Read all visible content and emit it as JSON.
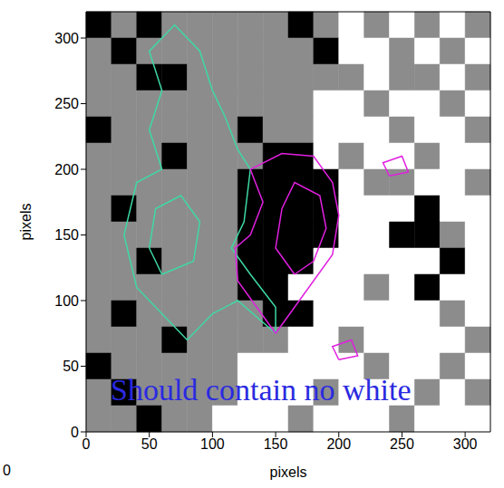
{
  "chart_data": {
    "type": "heatmap",
    "x_label": "pixels",
    "y_label": "pixels",
    "xlim": [
      0,
      320
    ],
    "ylim": [
      0,
      320
    ],
    "xticks": [
      0,
      50,
      100,
      150,
      200,
      250,
      300
    ],
    "yticks": [
      0,
      50,
      100,
      150,
      200,
      250,
      300
    ],
    "grid": false,
    "levels": [
      -1,
      0,
      1
    ],
    "colors": [
      "#000000",
      "#8c8c8c",
      "#ffffff"
    ],
    "cells": [
      [
        -1,
        0,
        -1,
        0,
        0,
        0,
        0,
        0,
        -1,
        0,
        1,
        0,
        1,
        0,
        1,
        0
      ],
      [
        0,
        -1,
        0,
        0,
        0,
        0,
        0,
        0,
        0,
        -1,
        1,
        1,
        0,
        1,
        0,
        1
      ],
      [
        0,
        0,
        -1,
        -1,
        0,
        0,
        0,
        0,
        0,
        0,
        0,
        1,
        0,
        0,
        1,
        0
      ],
      [
        0,
        0,
        0,
        0,
        0,
        0,
        0,
        0,
        0,
        1,
        1,
        0,
        1,
        1,
        0,
        1
      ],
      [
        -1,
        0,
        0,
        0,
        0,
        0,
        -1,
        0,
        0,
        1,
        1,
        1,
        0,
        1,
        1,
        0
      ],
      [
        0,
        0,
        0,
        -1,
        0,
        0,
        0,
        -1,
        -1,
        1,
        0,
        1,
        1,
        0,
        1,
        1
      ],
      [
        0,
        0,
        0,
        0,
        0,
        0,
        -1,
        -1,
        -1,
        -1,
        1,
        0,
        0,
        1,
        1,
        0
      ],
      [
        0,
        -1,
        0,
        0,
        0,
        0,
        -1,
        -1,
        -1,
        -1,
        1,
        1,
        1,
        -1,
        1,
        1
      ],
      [
        0,
        0,
        0,
        0,
        0,
        0,
        -1,
        -1,
        -1,
        -1,
        1,
        1,
        -1,
        -1,
        0,
        1
      ],
      [
        0,
        0,
        -1,
        0,
        0,
        0,
        -1,
        -1,
        -1,
        1,
        1,
        1,
        1,
        1,
        -1,
        1
      ],
      [
        0,
        0,
        0,
        0,
        0,
        0,
        -1,
        -1,
        1,
        1,
        1,
        0,
        1,
        -1,
        1,
        1
      ],
      [
        0,
        -1,
        0,
        0,
        0,
        0,
        0,
        -1,
        -1,
        1,
        1,
        1,
        1,
        1,
        0,
        1
      ],
      [
        0,
        0,
        0,
        -1,
        0,
        0,
        0,
        0,
        1,
        1,
        0,
        1,
        1,
        1,
        1,
        0
      ],
      [
        -1,
        0,
        0,
        0,
        0,
        0,
        1,
        1,
        1,
        1,
        1,
        0,
        1,
        1,
        0,
        1
      ],
      [
        0,
        -1,
        0,
        0,
        0,
        0,
        1,
        1,
        1,
        0,
        1,
        1,
        1,
        0,
        1,
        0
      ],
      [
        0,
        0,
        -1,
        0,
        0,
        1,
        1,
        1,
        0,
        1,
        1,
        1,
        0,
        1,
        1,
        1
      ]
    ],
    "series": [
      {
        "type": "line",
        "color": "#3fd9a4",
        "values": [
          [
            150,
            75
          ],
          [
            120,
            100
          ],
          [
            100,
            90
          ],
          [
            80,
            70
          ],
          [
            60,
            90
          ],
          [
            40,
            110
          ],
          [
            30,
            150
          ],
          [
            40,
            190
          ],
          [
            60,
            200
          ],
          [
            50,
            230
          ],
          [
            60,
            260
          ],
          [
            50,
            290
          ],
          [
            70,
            310
          ],
          [
            90,
            290
          ],
          [
            100,
            260
          ],
          [
            110,
            240
          ],
          [
            120,
            215
          ],
          [
            130,
            200
          ],
          [
            125,
            160
          ],
          [
            115,
            140
          ],
          [
            130,
            120
          ],
          [
            150,
            95
          ],
          [
            150,
            75
          ]
        ]
      },
      {
        "type": "line",
        "color": "#3fd9a4",
        "values": [
          [
            60,
            120
          ],
          [
            50,
            140
          ],
          [
            55,
            170
          ],
          [
            75,
            180
          ],
          [
            90,
            160
          ],
          [
            85,
            130
          ],
          [
            60,
            120
          ]
        ]
      },
      {
        "type": "line",
        "color": "#e020e0",
        "values": [
          [
            150,
            75
          ],
          [
            135,
            95
          ],
          [
            120,
            115
          ],
          [
            118,
            140
          ],
          [
            130,
            150
          ],
          [
            140,
            175
          ],
          [
            130,
            200
          ],
          [
            155,
            212
          ],
          [
            180,
            210
          ],
          [
            195,
            190
          ],
          [
            200,
            165
          ],
          [
            195,
            135
          ],
          [
            180,
            115
          ],
          [
            165,
            95
          ],
          [
            150,
            75
          ]
        ]
      },
      {
        "type": "line",
        "color": "#e020e0",
        "values": [
          [
            165,
            120
          ],
          [
            150,
            140
          ],
          [
            155,
            170
          ],
          [
            165,
            190
          ],
          [
            185,
            180
          ],
          [
            190,
            155
          ],
          [
            180,
            130
          ],
          [
            165,
            120
          ]
        ]
      },
      {
        "type": "line",
        "color": "#e020e0",
        "values": [
          [
            240,
            195
          ],
          [
            235,
            205
          ],
          [
            250,
            210
          ],
          [
            255,
            198
          ],
          [
            240,
            195
          ]
        ]
      },
      {
        "type": "line",
        "color": "#e020e0",
        "values": [
          [
            200,
            55
          ],
          [
            195,
            65
          ],
          [
            210,
            70
          ],
          [
            215,
            58
          ],
          [
            200,
            55
          ]
        ]
      }
    ],
    "annotations": [
      "Should contain no white",
      "0"
    ]
  }
}
